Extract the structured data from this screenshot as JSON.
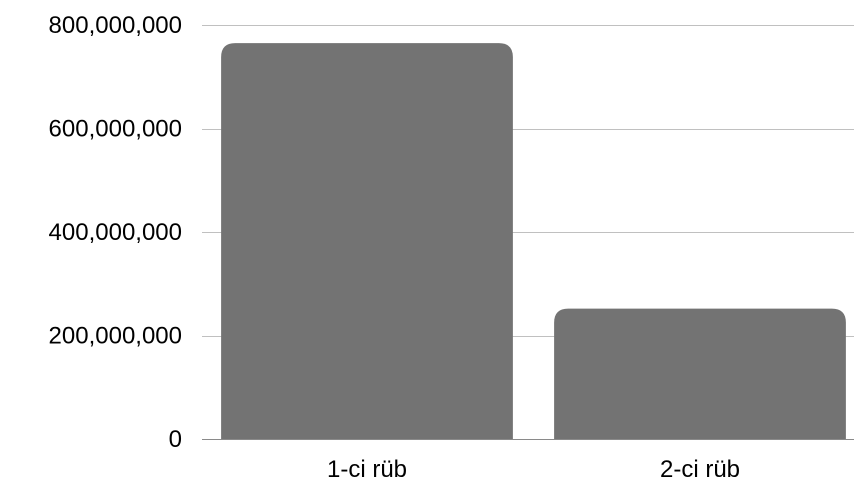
{
  "chart_data": {
    "type": "bar",
    "categories": [
      "1-ci rüb",
      "2-ci rüb"
    ],
    "values": [
      765000000,
      252000000
    ],
    "ylim": [
      0,
      800000000
    ],
    "yticks": [
      0,
      200000000,
      400000000,
      600000000,
      800000000
    ],
    "ytick_labels": [
      "0",
      "200,000,000",
      "400,000,000",
      "600,000,000",
      "800,000,000"
    ],
    "grid": true,
    "legend": "none",
    "bar_color": "#737373",
    "grid_color": "#c0c0c0"
  }
}
